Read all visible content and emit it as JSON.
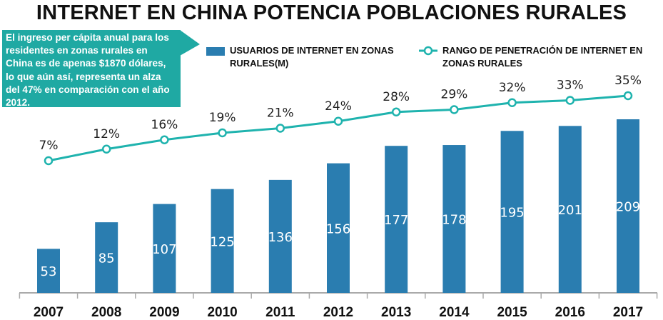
{
  "title": "INTERNET EN CHINA POTENCIA POBLACIONES RURALES",
  "callout": "El ingreso per cápita anual para los residentes en zonas rurales en China es de apenas $1870 dólares, lo que aún así, representa un alza del 47% en comparación con el año 2012.",
  "colors": {
    "bars": "#2a7db0",
    "line": "#1fb3ae",
    "callout": "#1fa9a3"
  },
  "chart_data": {
    "type": "bar+line",
    "categories": [
      "2007",
      "2008",
      "2009",
      "2010",
      "2011",
      "2012",
      "2013",
      "2014",
      "2015",
      "2016",
      "2017"
    ],
    "series": [
      {
        "name": "USUARIOS DE INTERNET EN ZONAS RURALES(M)",
        "type": "bar",
        "values": [
          53,
          85,
          107,
          125,
          136,
          156,
          177,
          178,
          195,
          201,
          209
        ]
      },
      {
        "name": "RANGO DE PENETRACIÓN DE INTERNET EN ZONAS RURALES",
        "type": "line",
        "values": [
          7,
          12,
          16,
          19,
          21,
          24,
          28,
          29,
          32,
          33,
          35
        ],
        "labels": [
          "7%",
          "12%",
          "16%",
          "19%",
          "21%",
          "24%",
          "28%",
          "29%",
          "32%",
          "33%",
          "35%"
        ]
      }
    ],
    "legend": "top",
    "grid": false
  }
}
